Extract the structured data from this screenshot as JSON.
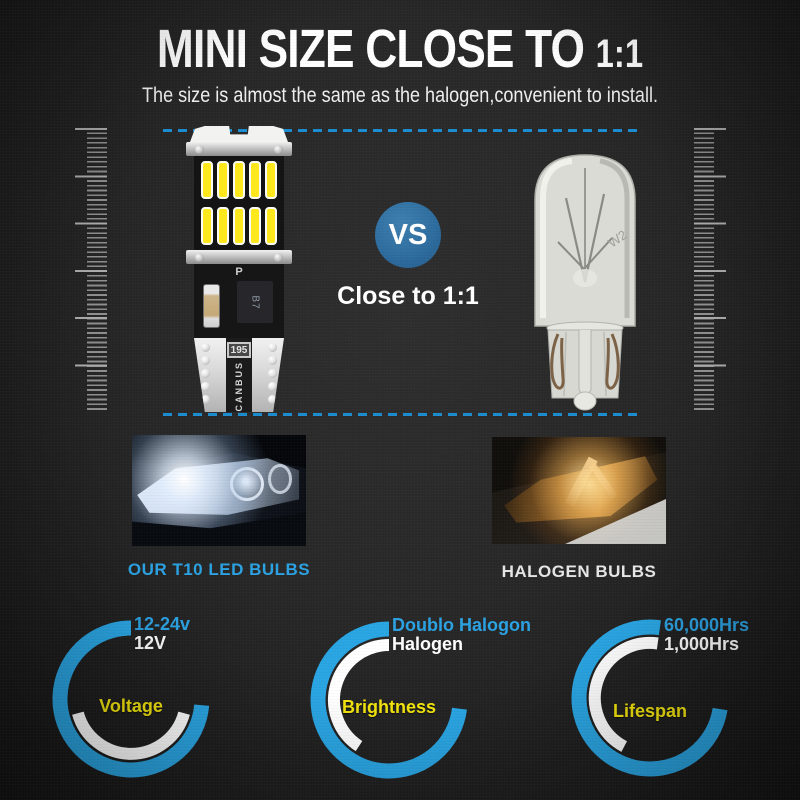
{
  "header": {
    "title": "MINI SIZE CLOSE TO ",
    "title_ratio": "1:1",
    "subtitle": "The size is almost the same as the halogen,convenient to install."
  },
  "versus": {
    "badge": "VS",
    "caption": "Close to 1:1"
  },
  "led_bulb": {
    "pcb_mark": "P",
    "chip_mark": "B7",
    "resistor_mark": "195",
    "base_mark": "CANBUS"
  },
  "halogen_bulb": {
    "glass_mark": "W2"
  },
  "captions": {
    "led": "OUR T10 LED BULBS",
    "halogen": "HALOGEN BULBS"
  },
  "colors": {
    "accent_blue": "#29A5E3",
    "dashed_line_blue": "#1B8CD0",
    "vs_badge_blue": "#2C6B9D",
    "metric_yellow": "#F2E40C",
    "led_chip_yellow": "#FFE81E",
    "background_dark": "#262626"
  },
  "chart_data": [
    {
      "type": "gauge",
      "metric": "Voltage",
      "series": [
        {
          "name": "LED",
          "value": "12-24v",
          "color": "#29A5E3",
          "arc_deg": {
            "start": 95,
            "end": 360
          }
        },
        {
          "name": "Halogen",
          "value": "12V",
          "color": "#FFFFFF",
          "arc_deg": {
            "start": 105,
            "end": 255
          }
        }
      ]
    },
    {
      "type": "gauge",
      "metric": "Brightness",
      "series": [
        {
          "name": "LED",
          "value": "Doublo Halogon",
          "color": "#29A5E3",
          "arc_deg": {
            "start": 97,
            "end": 360
          }
        },
        {
          "name": "Halogen",
          "value": "Halogen",
          "color": "#FFFFFF",
          "arc_deg": {
            "start": 213,
            "end": 360
          }
        }
      ]
    },
    {
      "type": "gauge",
      "metric": "Lifespan",
      "series": [
        {
          "name": "LED",
          "value": "60,000Hrs",
          "color": "#29A5E3",
          "arc_deg": {
            "start": 99,
            "end": 368
          }
        },
        {
          "name": "Halogen",
          "value": "1,000Hrs",
          "color": "#FFFFFF",
          "arc_deg": {
            "start": 208,
            "end": 368
          }
        }
      ]
    }
  ]
}
